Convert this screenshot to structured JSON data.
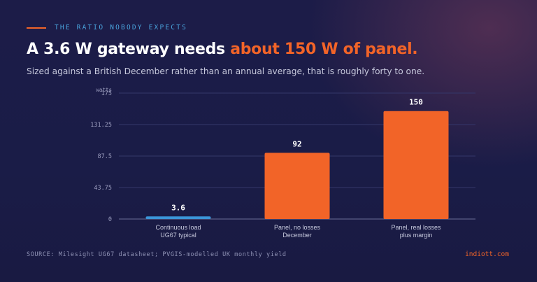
{
  "header": {
    "eyebrow": "THE RATIO NOBODY EXPECTS",
    "title_plain": "A 3.6 W gateway needs ",
    "title_accent": "about 150 W of panel.",
    "subtitle": "Sized against a British December rather than an annual average, that is roughly forty to one."
  },
  "chart_data": {
    "type": "bar",
    "title": "",
    "ylabel": "watts",
    "xlabel": "",
    "ylim": [
      0,
      175
    ],
    "yticks": [
      "0",
      "43.75",
      "87.5",
      "131.25",
      "175"
    ],
    "grid": true,
    "categories": [
      [
        "Continuous load",
        "UG67 typical"
      ],
      [
        "Panel, no losses",
        "December"
      ],
      [
        "Panel, real losses",
        "plus margin"
      ]
    ],
    "values": [
      3.6,
      92,
      150
    ],
    "value_labels": [
      "3.6",
      "92",
      "150"
    ],
    "colors": [
      "#3b95d8",
      "#f26428",
      "#f26428"
    ]
  },
  "footer": {
    "source": "SOURCE: Milesight UG67 datasheet; PVGIS-modelled UK monthly yield",
    "brand": "indiott.com"
  }
}
